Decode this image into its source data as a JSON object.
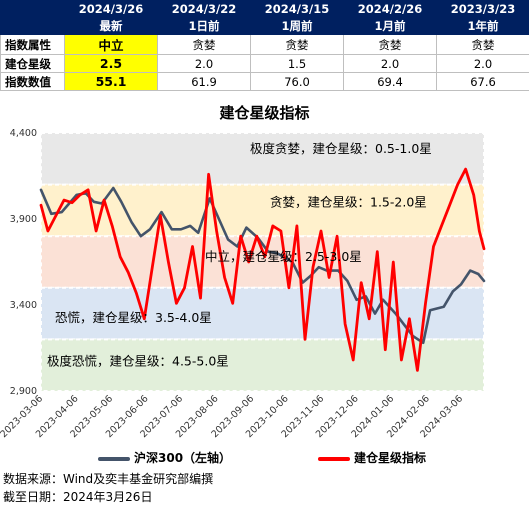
{
  "summary_table": {
    "columns": [
      {
        "date": "2024/3/26",
        "rel": "最新"
      },
      {
        "date": "2024/3/22",
        "rel": "1日前"
      },
      {
        "date": "2024/3/15",
        "rel": "1周前"
      },
      {
        "date": "2024/2/26",
        "rel": "1月前"
      },
      {
        "date": "2023/3/23",
        "rel": "1年前"
      }
    ],
    "rows": [
      {
        "label": "指数属性",
        "values": [
          "中立",
          "贪婪",
          "贪婪",
          "贪婪",
          "贪婪"
        ]
      },
      {
        "label": "建仓星级",
        "values": [
          "2.5",
          "2.0",
          "1.5",
          "2.0",
          "2.0"
        ]
      },
      {
        "label": "指数数值",
        "values": [
          "55.1",
          "61.9",
          "76.0",
          "69.4",
          "67.6"
        ]
      }
    ]
  },
  "chart_data": {
    "type": "line",
    "title": "建仓星级指标",
    "y_left": {
      "ticks": [
        2900,
        3400,
        3900,
        4400
      ],
      "tick_labels": [
        "2,900",
        "3,400",
        "3,900",
        "4,400"
      ],
      "range": [
        2900,
        4400
      ]
    },
    "y_right_range": [
      0,
      100
    ],
    "x_labels": [
      "2023-03-06",
      "2023-04-06",
      "2023-05-06",
      "2023-06-06",
      "2023-07-06",
      "2023-08-06",
      "2023-09-06",
      "2023-10-06",
      "2023-11-06",
      "2023-12-06",
      "2024-01-06",
      "2024-02-06",
      "2024-03-06"
    ],
    "x_range": [
      "2023-03-06",
      "2024-03-26"
    ],
    "zones": [
      {
        "label": "极度贪婪，建仓星级：0.5-1.0星",
        "from": 80,
        "to": 100,
        "color": "#e8e8e8"
      },
      {
        "label": "贪婪，建仓星级：1.5-2.0星",
        "from": 60,
        "to": 80,
        "color": "#fff1cc"
      },
      {
        "label": "中立，建仓星级：2.5-3.0星",
        "from": 40,
        "to": 60,
        "color": "#fbe1d6"
      },
      {
        "label": "恐慌，建仓星级：3.5-4.0星",
        "from": 20,
        "to": 40,
        "color": "#dae5f3"
      },
      {
        "label": "极度恐慌，建仓星级：4.5-5.0星",
        "from": 0,
        "to": 20,
        "color": "#e2efda"
      }
    ],
    "series": [
      {
        "name": "沪深300（左轴）",
        "axis": "left",
        "color": "#44546a",
        "points": [
          [
            "2023-03-06",
            4070
          ],
          [
            "2023-03-15",
            3930
          ],
          [
            "2023-03-24",
            3940
          ],
          [
            "2023-04-06",
            4040
          ],
          [
            "2023-04-14",
            4050
          ],
          [
            "2023-04-21",
            4000
          ],
          [
            "2023-04-28",
            3990
          ],
          [
            "2023-05-08",
            4080
          ],
          [
            "2023-05-15",
            4000
          ],
          [
            "2023-05-24",
            3880
          ],
          [
            "2023-06-01",
            3800
          ],
          [
            "2023-06-09",
            3840
          ],
          [
            "2023-06-19",
            3940
          ],
          [
            "2023-06-28",
            3840
          ],
          [
            "2023-07-06",
            3840
          ],
          [
            "2023-07-14",
            3860
          ],
          [
            "2023-07-21",
            3820
          ],
          [
            "2023-07-31",
            4020
          ],
          [
            "2023-08-08",
            3900
          ],
          [
            "2023-08-16",
            3780
          ],
          [
            "2023-08-24",
            3740
          ],
          [
            "2023-09-01",
            3850
          ],
          [
            "2023-09-11",
            3790
          ],
          [
            "2023-09-20",
            3710
          ],
          [
            "2023-09-28",
            3700
          ],
          [
            "2023-10-11",
            3650
          ],
          [
            "2023-10-20",
            3530
          ],
          [
            "2023-10-27",
            3570
          ],
          [
            "2023-11-03",
            3620
          ],
          [
            "2023-11-10",
            3600
          ],
          [
            "2023-11-20",
            3600
          ],
          [
            "2023-11-28",
            3540
          ],
          [
            "2023-12-06",
            3430
          ],
          [
            "2023-12-14",
            3450
          ],
          [
            "2023-12-22",
            3350
          ],
          [
            "2023-12-29",
            3430
          ],
          [
            "2024-01-09",
            3350
          ],
          [
            "2024-01-17",
            3280
          ],
          [
            "2024-01-24",
            3220
          ],
          [
            "2024-02-02",
            3180
          ],
          [
            "2024-02-08",
            3370
          ],
          [
            "2024-02-20",
            3390
          ],
          [
            "2024-02-28",
            3480
          ],
          [
            "2024-03-06",
            3520
          ],
          [
            "2024-03-14",
            3600
          ],
          [
            "2024-03-21",
            3580
          ],
          [
            "2024-03-26",
            3540
          ]
        ]
      },
      {
        "name": "建仓星级指标",
        "axis": "right",
        "color": "#ff0000",
        "points": [
          [
            "2023-03-06",
            72
          ],
          [
            "2023-03-12",
            62
          ],
          [
            "2023-03-19",
            68
          ],
          [
            "2023-03-26",
            74
          ],
          [
            "2023-04-02",
            73
          ],
          [
            "2023-04-09",
            76
          ],
          [
            "2023-04-16",
            78
          ],
          [
            "2023-04-23",
            62
          ],
          [
            "2023-04-30",
            74
          ],
          [
            "2023-05-07",
            64
          ],
          [
            "2023-05-14",
            52
          ],
          [
            "2023-05-21",
            46
          ],
          [
            "2023-05-28",
            38
          ],
          [
            "2023-06-04",
            28
          ],
          [
            "2023-06-11",
            48
          ],
          [
            "2023-06-18",
            68
          ],
          [
            "2023-06-25",
            50
          ],
          [
            "2023-07-02",
            34
          ],
          [
            "2023-07-09",
            40
          ],
          [
            "2023-07-16",
            56
          ],
          [
            "2023-07-23",
            36
          ],
          [
            "2023-07-30",
            84
          ],
          [
            "2023-08-06",
            62
          ],
          [
            "2023-08-13",
            44
          ],
          [
            "2023-08-20",
            34
          ],
          [
            "2023-08-27",
            60
          ],
          [
            "2023-09-03",
            50
          ],
          [
            "2023-09-10",
            60
          ],
          [
            "2023-09-17",
            52
          ],
          [
            "2023-09-24",
            64
          ],
          [
            "2023-10-01",
            62
          ],
          [
            "2023-10-08",
            40
          ],
          [
            "2023-10-15",
            64
          ],
          [
            "2023-10-22",
            20
          ],
          [
            "2023-10-29",
            48
          ],
          [
            "2023-11-05",
            62
          ],
          [
            "2023-11-12",
            44
          ],
          [
            "2023-11-19",
            60
          ],
          [
            "2023-11-26",
            26
          ],
          [
            "2023-12-03",
            12
          ],
          [
            "2023-12-10",
            42
          ],
          [
            "2023-12-17",
            28
          ],
          [
            "2023-12-24",
            54
          ],
          [
            "2023-12-31",
            16
          ],
          [
            "2024-01-07",
            50
          ],
          [
            "2024-01-14",
            12
          ],
          [
            "2024-01-21",
            28
          ],
          [
            "2024-01-28",
            8
          ],
          [
            "2024-02-04",
            34
          ],
          [
            "2024-02-11",
            56
          ],
          [
            "2024-02-18",
            64
          ],
          [
            "2024-02-25",
            72
          ],
          [
            "2024-03-03",
            80
          ],
          [
            "2024-03-10",
            86
          ],
          [
            "2024-03-17",
            76
          ],
          [
            "2024-03-22",
            61.9
          ],
          [
            "2024-03-26",
            55.1
          ]
        ]
      }
    ]
  },
  "legend": {
    "hs300": "沪深300（左轴）",
    "index": "建仓星级指标"
  },
  "footer": {
    "source": "数据来源：Wind及奕丰基金研究部编撰",
    "cutoff": "截至日期：2024年3月26日"
  }
}
